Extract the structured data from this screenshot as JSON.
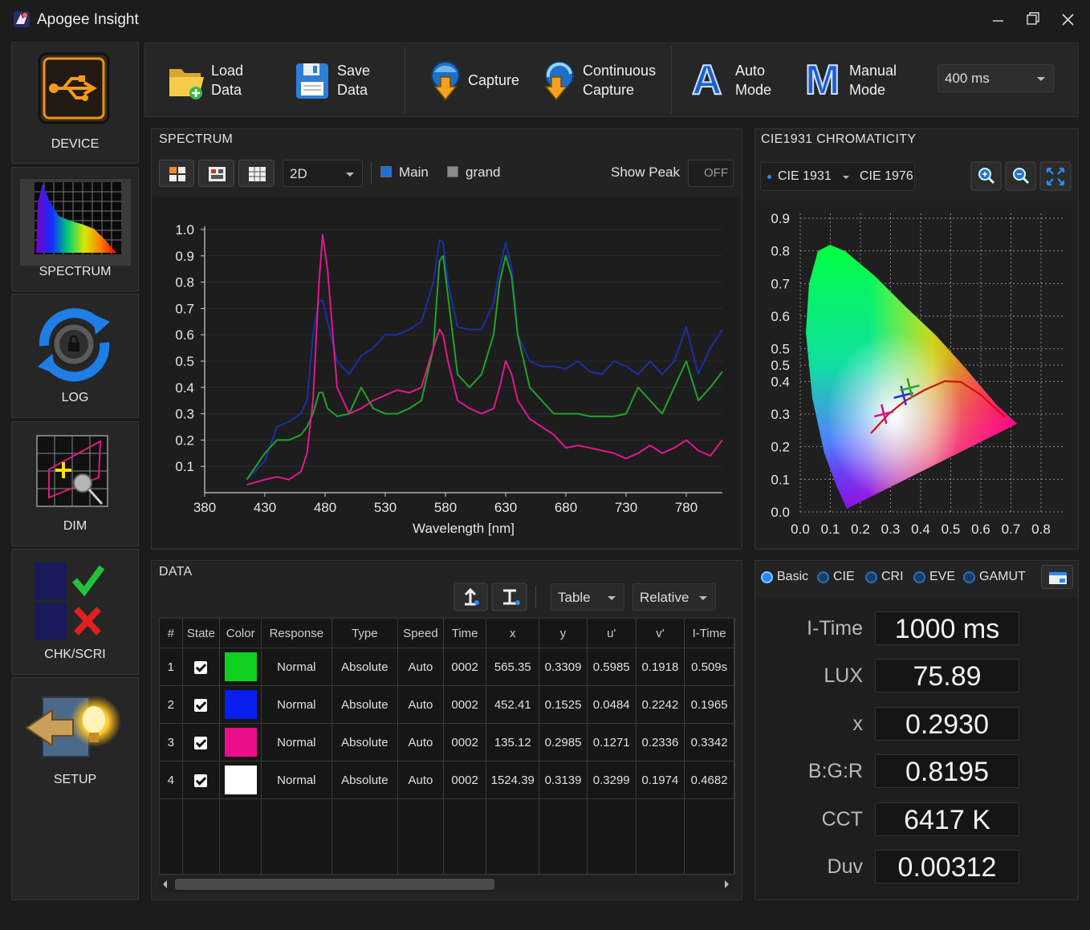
{
  "window": {
    "title": "Apogee Insight"
  },
  "sidebar": [
    "DEVICE",
    "SPECTRUM",
    "LOG",
    "DIM",
    "CHK/SCRI",
    "SETUP"
  ],
  "toolbar": {
    "buttons": [
      {
        "label": "Load Data"
      },
      {
        "label": "Save Data"
      },
      {
        "label": "Capture"
      },
      {
        "label": "Continuous Capture"
      },
      {
        "icon": "A",
        "label": "Auto Mode"
      },
      {
        "icon": "M",
        "label": "Manual Mode"
      }
    ],
    "integration": "400 ms"
  },
  "spectrum": {
    "title": "SPECTRUM",
    "view": "2D",
    "toggles": [
      {
        "label": "Main",
        "color": "#1e6fd9"
      },
      {
        "label": "grand",
        "color": "#8a8a8a"
      }
    ],
    "show_peak": "Show Peak",
    "peak_state": "OFF"
  },
  "cie": {
    "title": "CIE1931 CHROMATICITY",
    "modes": [
      "CIE 1931",
      "CIE 1976"
    ]
  },
  "chart_data": [
    {
      "type": "line",
      "x_label": "Wavelength [nm]",
      "x": [
        415,
        430,
        440,
        450,
        460,
        465,
        470,
        475,
        478,
        482,
        490,
        500,
        510,
        520,
        530,
        540,
        550,
        560,
        570,
        575,
        578,
        582,
        590,
        600,
        610,
        620,
        625,
        630,
        635,
        640,
        650,
        660,
        670,
        680,
        690,
        700,
        710,
        720,
        730,
        740,
        750,
        760,
        770,
        780,
        790,
        800,
        810
      ],
      "series": [
        {
          "color": "#1c2fa8",
          "values": [
            0.05,
            0.12,
            0.25,
            0.27,
            0.3,
            0.35,
            0.6,
            0.73,
            0.73,
            0.65,
            0.5,
            0.45,
            0.52,
            0.55,
            0.6,
            0.6,
            0.62,
            0.65,
            0.8,
            0.96,
            0.95,
            0.8,
            0.63,
            0.62,
            0.62,
            0.72,
            0.85,
            0.95,
            0.85,
            0.6,
            0.5,
            0.48,
            0.48,
            0.47,
            0.5,
            0.46,
            0.45,
            0.5,
            0.48,
            0.45,
            0.5,
            0.45,
            0.5,
            0.63,
            0.45,
            0.55,
            0.62
          ]
        },
        {
          "color": "#1fa22a",
          "values": [
            0.05,
            0.15,
            0.2,
            0.2,
            0.22,
            0.25,
            0.3,
            0.38,
            0.38,
            0.32,
            0.29,
            0.3,
            0.4,
            0.32,
            0.3,
            0.3,
            0.32,
            0.35,
            0.55,
            0.88,
            0.9,
            0.75,
            0.45,
            0.4,
            0.45,
            0.6,
            0.8,
            0.9,
            0.82,
            0.6,
            0.4,
            0.35,
            0.3,
            0.3,
            0.3,
            0.29,
            0.29,
            0.29,
            0.3,
            0.4,
            0.35,
            0.3,
            0.4,
            0.5,
            0.35,
            0.4,
            0.46
          ]
        },
        {
          "color": "#e0188f",
          "values": [
            0.03,
            0.05,
            0.06,
            0.05,
            0.08,
            0.15,
            0.35,
            0.8,
            0.98,
            0.85,
            0.4,
            0.3,
            0.32,
            0.35,
            0.37,
            0.39,
            0.38,
            0.4,
            0.55,
            0.62,
            0.6,
            0.5,
            0.35,
            0.32,
            0.3,
            0.32,
            0.4,
            0.5,
            0.45,
            0.35,
            0.28,
            0.25,
            0.22,
            0.17,
            0.18,
            0.17,
            0.16,
            0.15,
            0.13,
            0.15,
            0.18,
            0.15,
            0.17,
            0.2,
            0.16,
            0.14,
            0.2
          ]
        }
      ],
      "xlim": [
        380,
        810
      ],
      "xticks": [
        380,
        430,
        480,
        530,
        580,
        630,
        680,
        730,
        780
      ],
      "ylim": [
        0,
        1.0
      ],
      "yticks": [
        0.1,
        0.2,
        0.3,
        0.4,
        0.5,
        0.6,
        0.7,
        0.8,
        0.9,
        {
          "value": 1,
          "label": "1.0"
        }
      ],
      "grid": true
    },
    {
      "type": "scatter",
      "series": [
        {
          "color": "#d0187f",
          "x": [
            0.278
          ],
          "values": [
            0.3
          ]
        },
        {
          "color": "#2a3ad6",
          "x": [
            0.343
          ],
          "values": [
            0.357
          ]
        },
        {
          "color": "#2ea82e",
          "x": [
            0.364
          ],
          "values": [
            0.38
          ]
        }
      ],
      "xlim": [
        0,
        0.8
      ],
      "xticks": [
        {
          "value": 0,
          "label": "0.0"
        },
        0.1,
        0.2,
        0.3,
        0.4,
        0.5,
        0.6,
        0.7,
        0.8
      ],
      "ylim": [
        0,
        0.9
      ],
      "yticks": [
        {
          "value": 0,
          "label": "0.0"
        },
        0.1,
        0.2,
        0.3,
        0.4,
        {
          "value": 0.45,
          "label": "0.5"
        },
        0.5,
        0.6,
        0.7,
        0.8,
        0.9
      ],
      "grid": true
    }
  ],
  "data": {
    "title": "DATA",
    "view": "Table",
    "scale": "Relative",
    "columns": [
      "#",
      "State",
      "Color",
      "Response",
      "Type",
      "Speed",
      "Time",
      "x",
      "y",
      "u'",
      "v'",
      "I-Time"
    ],
    "rows": [
      {
        "index": 1,
        "checked": true,
        "color": "#10d020",
        "cells": [
          "Normal",
          "Absolute",
          "Auto",
          "0002",
          "565.35",
          "0.3309",
          "0.5985",
          "0.1918",
          "0.509s"
        ]
      },
      {
        "index": 2,
        "checked": true,
        "color": "#0a1ef0",
        "cells": [
          "Normal",
          "Absolute",
          "Auto",
          "0002",
          "452.41",
          "0.1525",
          "0.0484",
          "0.2242",
          "0.1965"
        ]
      },
      {
        "index": 3,
        "checked": true,
        "color": "#ec0f8c",
        "cells": [
          "Normal",
          "Absolute",
          "Auto",
          "0002",
          "135.12",
          "0.2985",
          "0.1271",
          "0.2336",
          "0.3342"
        ]
      },
      {
        "index": 4,
        "checked": true,
        "color": "#ffffff",
        "cells": [
          "Normal",
          "Absolute",
          "Auto",
          "0002",
          "1524.39",
          "0.3139",
          "0.3299",
          "0.1974",
          "0.4682"
        ]
      }
    ]
  },
  "summary": {
    "tabs": [
      "Basic",
      "CIE",
      "CRI",
      "EVE",
      "GAMUT"
    ],
    "selected": 0,
    "metrics": [
      {
        "label": "I-Time",
        "value": "1000 ms"
      },
      {
        "label": "LUX",
        "value": "75.89"
      },
      {
        "label": "x",
        "value": "0.2930"
      },
      {
        "label": "B:G:R",
        "value": "0.8195"
      },
      {
        "label": "CCT",
        "value": "6417 K"
      },
      {
        "label": "Duv",
        "value": "0.00312"
      }
    ]
  }
}
